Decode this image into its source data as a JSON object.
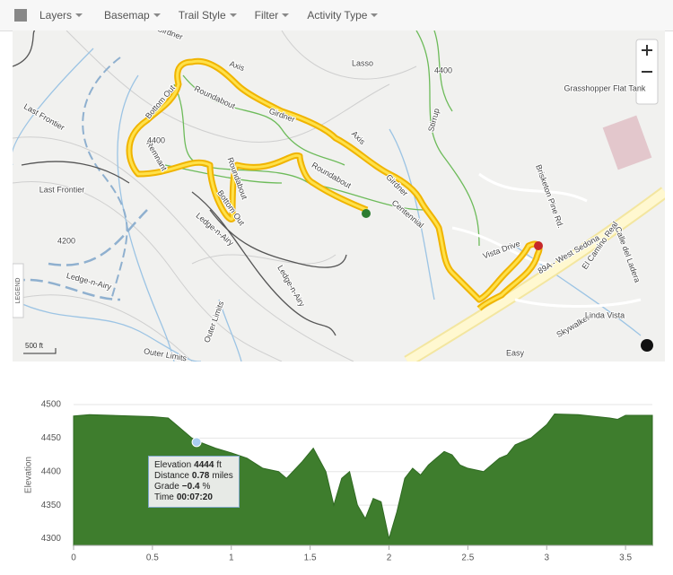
{
  "toolbar": {
    "items": [
      "Layers",
      "Basemap",
      "Trail Style",
      "Filter",
      "Activity Type"
    ]
  },
  "map": {
    "labels": [
      "Axis",
      "Bottom Out",
      "Roundabout",
      "Girdner",
      "Lasso",
      "Last Frontier",
      "Last Frontier",
      "Remnant",
      "Roundabout",
      "Bottom Out",
      "Ledge-n-Airy",
      "Ledge-n-Airy",
      "Ledge-n-Airy",
      "Outer Limits",
      "Outer Limits",
      "Centennial",
      "Stirrup",
      "Axis",
      "Roundabout",
      "Girdner",
      "Skywalker",
      "Linda Vista",
      "Grasshopper Flat Tank",
      "Brisketon Pine Rd.",
      "El Camino Real",
      "Calle del Ladera",
      "89A - West Sedona",
      "Easy",
      "Vista Drive",
      "4400",
      "4400",
      "4200",
      "Girdner"
    ],
    "legend": "LEGEND",
    "scale": "500 ft"
  },
  "chart_data": {
    "type": "area",
    "y_label": "Elevation",
    "color": "#3e7d2d",
    "x": [
      0,
      0.1,
      0.5,
      0.6,
      0.65,
      0.75,
      0.8,
      0.9,
      1.0,
      1.1,
      1.2,
      1.3,
      1.35,
      1.45,
      1.52,
      1.6,
      1.65,
      1.7,
      1.75,
      1.8,
      1.85,
      1.9,
      1.95,
      2.0,
      2.05,
      2.1,
      2.15,
      2.2,
      2.25,
      2.3,
      2.35,
      2.4,
      2.45,
      2.5,
      2.6,
      2.7,
      2.75,
      2.8,
      2.9,
      3.0,
      3.05,
      3.2,
      3.4,
      3.45,
      3.5,
      3.67
    ],
    "values": [
      4483,
      4485,
      4482,
      4480,
      4470,
      4450,
      4444,
      4435,
      4428,
      4420,
      4405,
      4400,
      4390,
      4415,
      4435,
      4400,
      4350,
      4390,
      4400,
      4350,
      4330,
      4360,
      4355,
      4300,
      4340,
      4390,
      4405,
      4395,
      4410,
      4420,
      4430,
      4425,
      4410,
      4405,
      4400,
      4420,
      4425,
      4440,
      4450,
      4470,
      4486,
      4485,
      4480,
      4478,
      4484,
      4484
    ],
    "xlim": [
      0,
      3.67
    ],
    "ylim": [
      4290,
      4500
    ],
    "xticks": [
      0,
      0.5,
      1,
      1.5,
      2,
      2.5,
      3,
      3.5
    ],
    "yticks": [
      4300,
      4350,
      4400,
      4450,
      4500
    ],
    "grid": true,
    "tooltip": [
      [
        "Elevation",
        "4444",
        "ft"
      ],
      [
        "Distance",
        "0.78",
        "miles"
      ],
      [
        "Grade",
        "−0.4",
        "%"
      ],
      [
        "Time",
        "00:07:20",
        ""
      ]
    ]
  }
}
